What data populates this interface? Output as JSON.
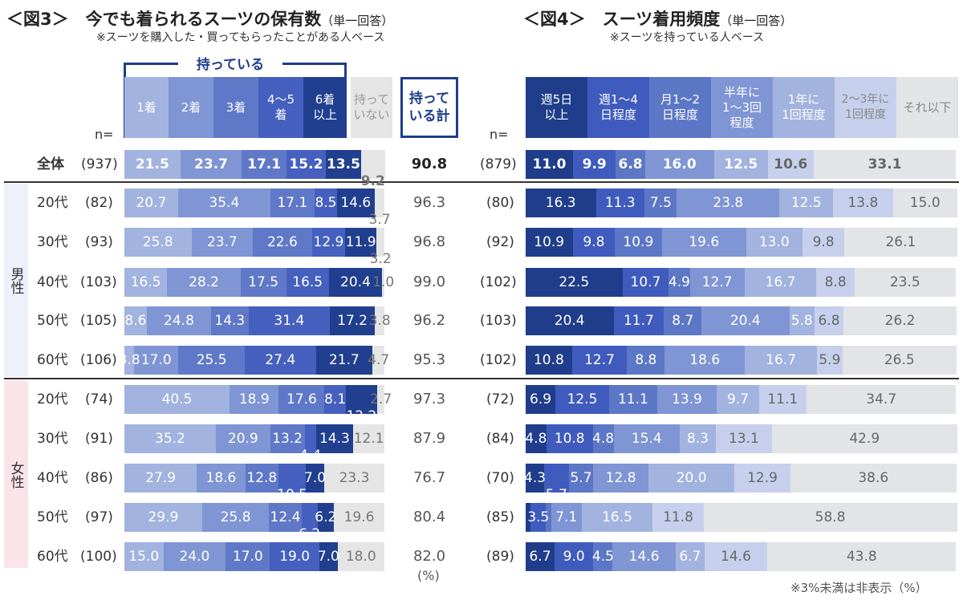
{
  "chart_data": [
    {
      "type": "bar",
      "orientation": "horizontal-stacked-100",
      "title": "＜図3＞　今でも着られるスーツの保有数",
      "title_suffix": "（単一回答）",
      "subtitle": "※スーツを購入した・買ってもらったことがある人ベース",
      "group_label": "持っている",
      "n_label": "n=",
      "total_header": "持って\nいる計",
      "unit": "(%)",
      "series": [
        {
          "name": "1着",
          "color": "#a3b3df"
        },
        {
          "name": "2着",
          "color": "#7f95d4"
        },
        {
          "name": "3着",
          "color": "#5f79c8"
        },
        {
          "name": "4～5\n着",
          "color": "#4560bf"
        },
        {
          "name": "6着\n以上",
          "color": "#213f8f"
        },
        {
          "name": "持って\nいない",
          "color": "#e5e5e5"
        }
      ],
      "rows": [
        {
          "label": "全体",
          "n": "(937)",
          "values": [
            21.5,
            23.7,
            17.1,
            15.2,
            13.5,
            9.2
          ],
          "total": "90.8"
        },
        {
          "label": "20代",
          "n": "(82)",
          "values": [
            20.7,
            35.4,
            17.1,
            8.5,
            14.6,
            3.7
          ],
          "total": "96.3"
        },
        {
          "label": "30代",
          "n": "(93)",
          "values": [
            25.8,
            23.7,
            22.6,
            12.9,
            11.9,
            3.2
          ],
          "total": "96.8"
        },
        {
          "label": "40代",
          "n": "(103)",
          "values": [
            16.5,
            28.2,
            17.5,
            16.5,
            20.4,
            1.0
          ],
          "total": "99.0"
        },
        {
          "label": "50代",
          "n": "(105)",
          "values": [
            8.6,
            24.8,
            14.3,
            31.4,
            17.2,
            3.8
          ],
          "total": "96.2"
        },
        {
          "label": "60代",
          "n": "(106)",
          "values": [
            3.8,
            17.0,
            25.5,
            27.4,
            21.7,
            4.7
          ],
          "total": "95.3"
        },
        {
          "label": "20代",
          "n": "(74)",
          "values": [
            40.5,
            18.9,
            17.6,
            8.1,
            12.2,
            2.7
          ],
          "total": "97.3"
        },
        {
          "label": "30代",
          "n": "(91)",
          "values": [
            35.2,
            20.9,
            13.2,
            4.4,
            14.3,
            12.1
          ],
          "total": "87.9"
        },
        {
          "label": "40代",
          "n": "(86)",
          "values": [
            27.9,
            18.6,
            12.8,
            10.5,
            7.0,
            23.3
          ],
          "total": "76.7"
        },
        {
          "label": "50代",
          "n": "(97)",
          "values": [
            29.9,
            25.8,
            12.4,
            6.2,
            6.2,
            19.6
          ],
          "total": "80.4"
        },
        {
          "label": "60代",
          "n": "(100)",
          "values": [
            15.0,
            24.0,
            17.0,
            19.0,
            7.0,
            18.0
          ],
          "total": "82.0"
        }
      ],
      "groups": [
        {
          "label": "男性"
        },
        {
          "label": "女性"
        }
      ]
    },
    {
      "type": "bar",
      "orientation": "horizontal-stacked-100",
      "title": "＜図4＞　スーツ着用頻度",
      "title_suffix": "（単一回答）",
      "subtitle": "※スーツを持っている人ベース",
      "n_label": "n=",
      "footnote": "※3%未満は非表示（%）",
      "series": [
        {
          "name": "週5日\n以上",
          "color": "#1f3d8a"
        },
        {
          "name": "週1～4\n日程度",
          "color": "#3f5bbd"
        },
        {
          "name": "月1～2\n日程度",
          "color": "#5c77c6"
        },
        {
          "name": "半年に\n1～3回\n程度",
          "color": "#7f95d4"
        },
        {
          "name": "1年に\n1回程度",
          "color": "#a3b3df"
        },
        {
          "name": "2～3年に\n1回程度",
          "color": "#c6d0ec"
        },
        {
          "name": "それ以下",
          "color": "#e2e4e8"
        }
      ],
      "rows": [
        {
          "n": "(879)",
          "values": [
            11.0,
            9.9,
            6.8,
            16.0,
            12.5,
            10.6,
            33.1
          ]
        },
        {
          "n": "(80)",
          "values": [
            16.3,
            11.3,
            7.5,
            23.8,
            12.5,
            13.8,
            15.0
          ]
        },
        {
          "n": "(92)",
          "values": [
            10.9,
            9.8,
            10.9,
            19.6,
            13.0,
            9.8,
            26.1
          ]
        },
        {
          "n": "(102)",
          "values": [
            22.5,
            10.7,
            4.9,
            12.7,
            16.7,
            8.8,
            23.5
          ]
        },
        {
          "n": "(103)",
          "values": [
            20.4,
            11.7,
            8.7,
            20.4,
            5.8,
            6.8,
            26.2
          ]
        },
        {
          "n": "(102)",
          "values": [
            10.8,
            12.7,
            8.8,
            18.6,
            16.7,
            5.9,
            26.5
          ]
        },
        {
          "n": "(72)",
          "values": [
            6.9,
            12.5,
            11.1,
            13.9,
            9.7,
            11.1,
            34.7
          ]
        },
        {
          "n": "(84)",
          "values": [
            4.8,
            10.8,
            4.8,
            15.4,
            8.3,
            13.1,
            42.9
          ]
        },
        {
          "n": "(70)",
          "values": [
            4.3,
            5.7,
            5.7,
            12.8,
            20.0,
            12.9,
            38.6
          ]
        },
        {
          "n": "(85)",
          "values": [
            1.2,
            3.5,
            1.2,
            7.1,
            16.5,
            11.8,
            58.8
          ]
        },
        {
          "n": "(89)",
          "values": [
            6.7,
            9.0,
            4.5,
            14.6,
            6.7,
            14.6,
            43.8
          ]
        }
      ]
    }
  ]
}
